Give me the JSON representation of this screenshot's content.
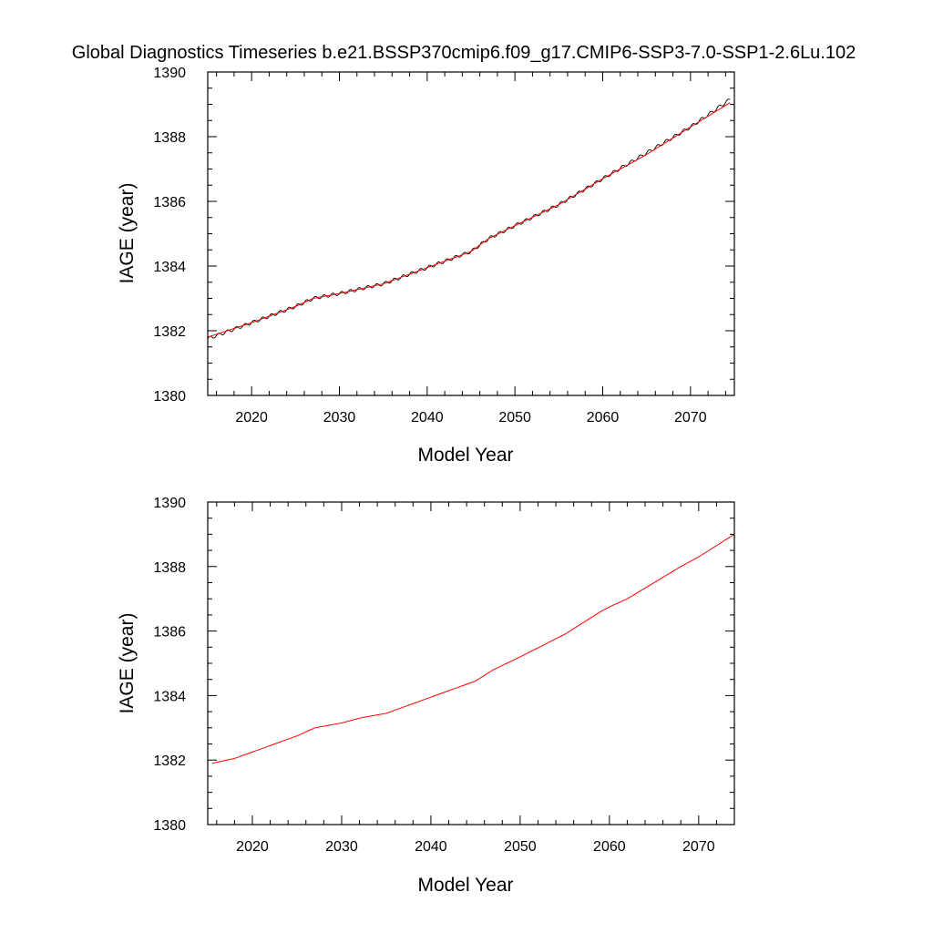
{
  "title": "Global Diagnostics Timeseries b.e21.BSSP370cmip6.f09_g17.CMIP6-SSP3-7.0-SSP1-2.6Lu.102",
  "colors": {
    "monthly": "#000000",
    "smoothed": "#ff0000",
    "axis": "#000000"
  },
  "chart_data": [
    {
      "type": "line",
      "xlabel": "Model Year",
      "ylabel": "IAGE (year)",
      "xlim": [
        2015,
        2075
      ],
      "ylim": [
        1380,
        1390
      ],
      "x_ticks": [
        2020,
        2030,
        2040,
        2050,
        2060,
        2070
      ],
      "y_ticks": [
        1380,
        1382,
        1384,
        1386,
        1388,
        1390
      ],
      "grid": false,
      "series": [
        {
          "kind": "monthly",
          "color": "#000000",
          "seasonal_amplitude": 0.05,
          "x": [
            2015.0,
            2020,
            2025,
            2027,
            2030,
            2035,
            2040,
            2045,
            2047,
            2050,
            2055,
            2060,
            2065,
            2070,
            2074.5
          ],
          "y": [
            1381.75,
            1382.25,
            1382.75,
            1383.0,
            1383.15,
            1383.45,
            1383.95,
            1384.45,
            1384.85,
            1385.25,
            1385.9,
            1386.7,
            1387.5,
            1388.3,
            1389.15
          ]
        },
        {
          "kind": "smoothed",
          "color": "#ff0000",
          "x": [
            2015.0,
            2020,
            2025,
            2027,
            2030,
            2035,
            2040,
            2045,
            2047,
            2050,
            2055,
            2060,
            2065,
            2070,
            2074.5
          ],
          "y": [
            1381.8,
            1382.25,
            1382.75,
            1383.0,
            1383.15,
            1383.45,
            1383.95,
            1384.45,
            1384.85,
            1385.25,
            1385.9,
            1386.7,
            1387.45,
            1388.3,
            1389.05
          ]
        }
      ]
    },
    {
      "type": "line",
      "xlabel": "Model Year",
      "ylabel": "IAGE (year)",
      "xlim": [
        2015,
        2074
      ],
      "ylim": [
        1380,
        1390
      ],
      "x_ticks": [
        2020,
        2030,
        2040,
        2050,
        2060,
        2070
      ],
      "y_ticks": [
        1380,
        1382,
        1384,
        1386,
        1388,
        1390
      ],
      "grid": false,
      "series": [
        {
          "kind": "smoothed",
          "color": "#ff0000",
          "x": [
            2015.5,
            2018,
            2020,
            2022,
            2025,
            2027,
            2030,
            2032,
            2035,
            2040,
            2044,
            2045,
            2047,
            2050,
            2055,
            2059,
            2060,
            2062,
            2065,
            2068,
            2070,
            2074
          ],
          "y": [
            1381.9,
            1382.05,
            1382.25,
            1382.45,
            1382.75,
            1383.0,
            1383.15,
            1383.3,
            1383.45,
            1383.95,
            1384.35,
            1384.45,
            1384.8,
            1385.2,
            1385.9,
            1386.6,
            1386.75,
            1387.0,
            1387.5,
            1388.0,
            1388.3,
            1389.0
          ]
        }
      ]
    }
  ]
}
